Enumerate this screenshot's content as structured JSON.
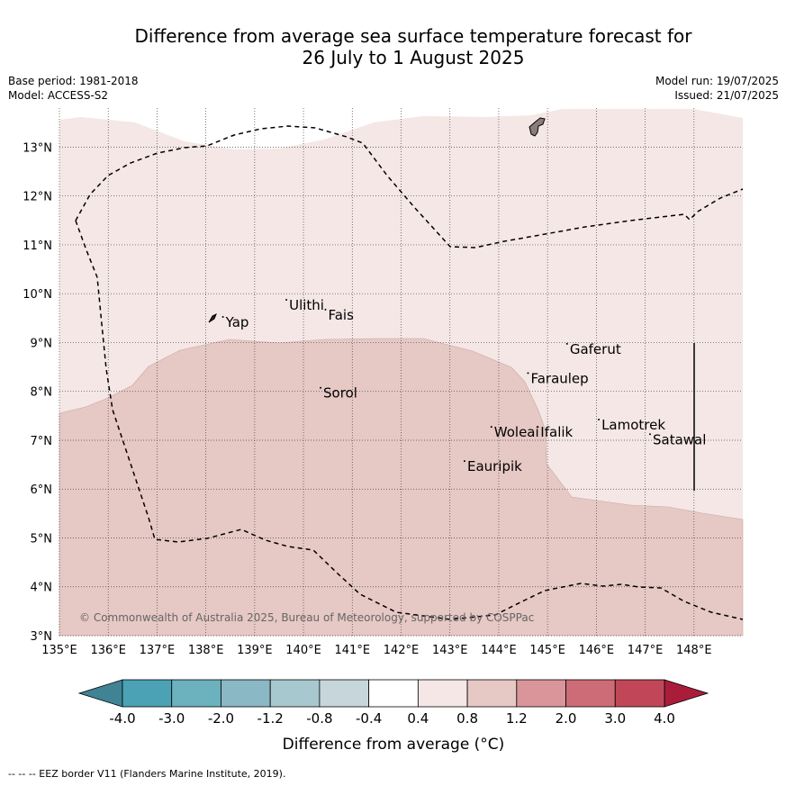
{
  "title": {
    "line1": "Difference from average sea surface temperature forecast for",
    "line2": "26 July to 1 August 2025"
  },
  "meta": {
    "base_period": "Base period: 1981-2018",
    "model": "Model: ACCESS-S2",
    "model_run": "Model run: 19/07/2025",
    "issued": "Issued: 21/07/2025"
  },
  "map": {
    "lon_ticks": [
      "135°E",
      "136°E",
      "137°E",
      "138°E",
      "139°E",
      "140°E",
      "141°E",
      "142°E",
      "143°E",
      "144°E",
      "145°E",
      "146°E",
      "147°E",
      "148°E"
    ],
    "lat_ticks": [
      "3°N",
      "4°N",
      "5°N",
      "6°N",
      "7°N",
      "8°N",
      "9°N",
      "10°N",
      "11°N",
      "12°N",
      "13°N"
    ],
    "lon_range": [
      135,
      149.0
    ],
    "lat_range": [
      3,
      13.8
    ],
    "copyright": "© Commonwealth of Australia 2025, Bureau of Meteorology, supported by COSPPac",
    "places": [
      {
        "name": "Yap",
        "lon": 138.35,
        "lat": 9.45
      },
      {
        "name": "Ulithi",
        "lon": 139.65,
        "lat": 9.8
      },
      {
        "name": "Fais",
        "lon": 140.45,
        "lat": 9.6
      },
      {
        "name": "Sorol",
        "lon": 140.35,
        "lat": 8.0
      },
      {
        "name": "Gaferut",
        "lon": 145.4,
        "lat": 8.9
      },
      {
        "name": "Faraulep",
        "lon": 144.6,
        "lat": 8.3
      },
      {
        "name": "Lamotrek",
        "lon": 146.05,
        "lat": 7.35
      },
      {
        "name": "Satawal",
        "lon": 147.1,
        "lat": 7.05
      },
      {
        "name": "Woleai",
        "lon": 143.85,
        "lat": 7.2
      },
      {
        "name": "Ifalik",
        "lon": 144.8,
        "lat": 7.2
      },
      {
        "name": "Eauripik",
        "lon": 143.3,
        "lat": 6.5
      }
    ],
    "colors": {
      "light_anomaly": "#f4e7e6",
      "medium_anomaly": "#e6c8c4",
      "land": "#8a7d7b",
      "grid": "#555555"
    }
  },
  "colorbar": {
    "labels": [
      "-4.0",
      "-3.0",
      "-2.0",
      "-1.2",
      "-0.8",
      "-0.4",
      "0.4",
      "0.8",
      "1.2",
      "2.0",
      "3.0",
      "4.0"
    ],
    "colors": [
      "#4aa2b4",
      "#6bb1be",
      "#8ab8c4",
      "#a8c8cf",
      "#c7d6db",
      "#ffffff",
      "#f4e7e6",
      "#e6c8c4",
      "#d9959a",
      "#cd6c77",
      "#c14758"
    ],
    "under_color": "#3f8394",
    "over_color": "#a91d3a",
    "label": "Difference from average (°C)"
  },
  "footer": {
    "eez": "--  --  -- EEZ border V11 (Flanders Marine Institute, 2019)."
  }
}
